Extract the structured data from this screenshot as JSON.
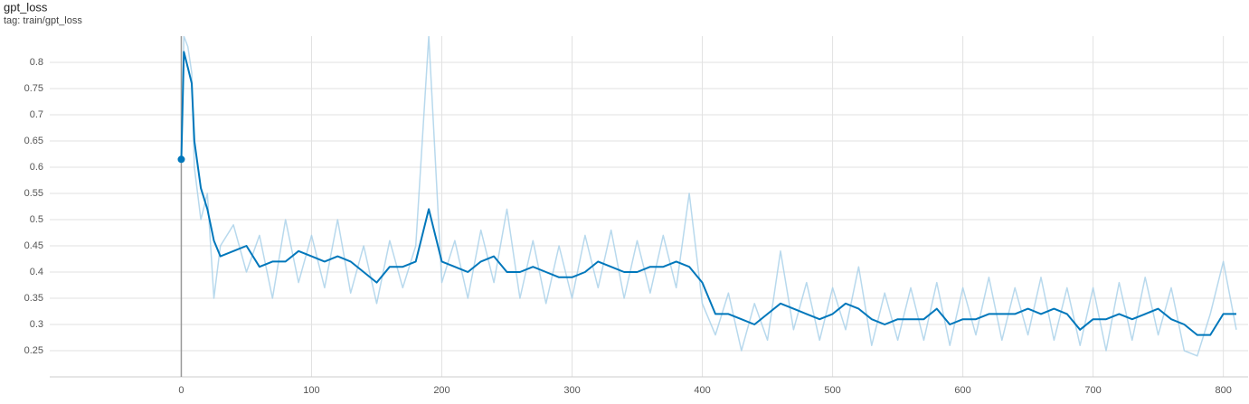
{
  "chart_data": {
    "type": "line",
    "title": "gpt_loss",
    "subtitle": "tag: train/gpt_loss",
    "x": [
      0,
      2,
      5,
      8,
      10,
      15,
      20,
      25,
      30,
      40,
      50,
      60,
      70,
      80,
      90,
      100,
      110,
      120,
      130,
      140,
      150,
      160,
      170,
      180,
      190,
      200,
      210,
      220,
      230,
      240,
      250,
      260,
      270,
      280,
      290,
      300,
      310,
      320,
      330,
      340,
      350,
      360,
      370,
      380,
      390,
      400,
      410,
      420,
      430,
      440,
      450,
      460,
      470,
      480,
      490,
      500,
      510,
      520,
      530,
      540,
      550,
      560,
      570,
      580,
      590,
      600,
      610,
      620,
      630,
      640,
      650,
      660,
      670,
      680,
      690,
      700,
      710,
      720,
      730,
      740,
      750,
      760,
      770,
      780,
      790,
      800,
      810
    ],
    "series": [
      {
        "color": "#0077bb",
        "width": 2,
        "opacity": 1,
        "marker": true,
        "values": [
          0.615,
          0.82,
          0.79,
          0.76,
          0.65,
          0.56,
          0.52,
          0.46,
          0.43,
          0.44,
          0.45,
          0.41,
          0.42,
          0.42,
          0.44,
          0.43,
          0.42,
          0.43,
          0.42,
          0.4,
          0.38,
          0.41,
          0.41,
          0.42,
          0.52,
          0.42,
          0.41,
          0.4,
          0.42,
          0.43,
          0.4,
          0.4,
          0.41,
          0.4,
          0.39,
          0.39,
          0.4,
          0.42,
          0.41,
          0.4,
          0.4,
          0.41,
          0.41,
          0.42,
          0.41,
          0.38,
          0.32,
          0.32,
          0.31,
          0.3,
          0.32,
          0.34,
          0.33,
          0.32,
          0.31,
          0.32,
          0.34,
          0.33,
          0.31,
          0.3,
          0.31,
          0.31,
          0.31,
          0.33,
          0.3,
          0.31,
          0.31,
          0.32,
          0.32,
          0.32,
          0.33,
          0.32,
          0.33,
          0.32,
          0.29,
          0.31,
          0.31,
          0.32,
          0.31,
          0.32,
          0.33,
          0.31,
          0.3,
          0.28,
          0.28,
          0.32,
          0.32
        ]
      },
      {
        "color": "#a6d0e8",
        "width": 1.5,
        "opacity": 0.8,
        "marker": false,
        "values": [
          0.615,
          0.85,
          0.83,
          0.78,
          0.6,
          0.5,
          0.55,
          0.35,
          0.45,
          0.49,
          0.4,
          0.47,
          0.35,
          0.5,
          0.38,
          0.47,
          0.37,
          0.5,
          0.36,
          0.45,
          0.34,
          0.46,
          0.37,
          0.45,
          0.85,
          0.38,
          0.46,
          0.35,
          0.48,
          0.38,
          0.52,
          0.35,
          0.46,
          0.34,
          0.45,
          0.35,
          0.47,
          0.37,
          0.48,
          0.35,
          0.46,
          0.36,
          0.47,
          0.37,
          0.55,
          0.34,
          0.28,
          0.36,
          0.25,
          0.34,
          0.27,
          0.44,
          0.29,
          0.38,
          0.27,
          0.37,
          0.29,
          0.41,
          0.26,
          0.36,
          0.27,
          0.37,
          0.27,
          0.38,
          0.26,
          0.37,
          0.28,
          0.39,
          0.27,
          0.37,
          0.28,
          0.39,
          0.27,
          0.37,
          0.26,
          0.37,
          0.25,
          0.38,
          0.27,
          0.39,
          0.28,
          0.37,
          0.25,
          0.24,
          0.32,
          0.42,
          0.29
        ]
      }
    ],
    "xlim": [
      -101,
      819
    ],
    "ylim": [
      0.2,
      0.85
    ],
    "xticks": [
      0,
      100,
      200,
      300,
      400,
      500,
      600,
      700,
      800
    ],
    "yticks": [
      0.25,
      0.3,
      0.35,
      0.4,
      0.45,
      0.5,
      0.55,
      0.6,
      0.65,
      0.7,
      0.75,
      0.8
    ],
    "grid": true
  }
}
